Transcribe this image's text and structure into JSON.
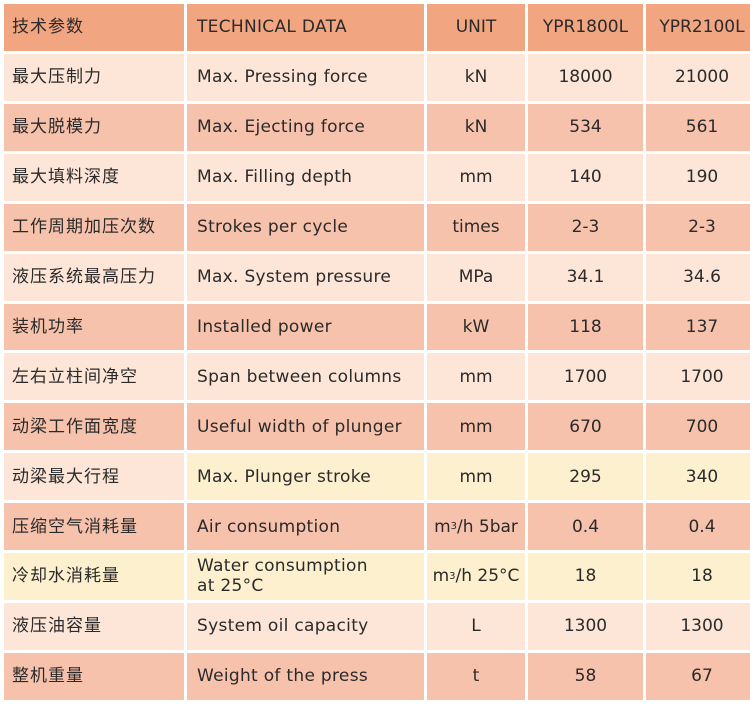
{
  "header": {
    "cn": "技术参数",
    "en": "TECHNICAL DATA",
    "unit": "UNIT",
    "model1": "YPR1800L",
    "model2": "YPR2100L"
  },
  "rows": [
    {
      "cn": "最大压制力",
      "en": "Max. Pressing force",
      "unit": "kN",
      "v1": "18000",
      "v2": "21000"
    },
    {
      "cn": "最大脱模力",
      "en": "Max. Ejecting force",
      "unit": "kN",
      "v1": "534",
      "v2": "561"
    },
    {
      "cn": "最大填料深度",
      "en": "Max. Filling depth",
      "unit": "mm",
      "v1": "140",
      "v2": "190"
    },
    {
      "cn": "工作周期加压次数",
      "en": "Strokes per cycle",
      "unit": "times",
      "v1": "2-3",
      "v2": "2-3"
    },
    {
      "cn": "液压系统最高压力",
      "en": "Max. System pressure",
      "unit": "MPa",
      "v1": "34.1",
      "v2": "34.6"
    },
    {
      "cn": "装机功率",
      "en": "Installed power",
      "unit": "kW",
      "v1": "118",
      "v2": "137"
    },
    {
      "cn": "左右立柱间净空",
      "en": "Span between columns",
      "unit": "mm",
      "v1": "1700",
      "v2": "1700"
    },
    {
      "cn": "动梁工作面宽度",
      "en": "Useful width of plunger",
      "unit": "mm",
      "v1": "670",
      "v2": "700"
    },
    {
      "cn": "动梁最大行程",
      "en": "Max. Plunger stroke",
      "unit": "mm",
      "v1": "295",
      "v2": "340"
    },
    {
      "cn": "压缩空气消耗量",
      "en": "Air consumption",
      "unit_base": "m",
      "unit_sup": "3",
      "unit_rest": "/h 5bar",
      "v1": "0.4",
      "v2": "0.4"
    },
    {
      "cn": "冷却水消耗量",
      "en_line1": "Water consumption",
      "en_line2": "at 25°C",
      "unit_base": "m",
      "unit_sup": "3",
      "unit_rest": "/h 25°C",
      "v1": "18",
      "v2": "18"
    },
    {
      "cn": "液压油容量",
      "en": "System oil capacity",
      "unit": "L",
      "v1": "1300",
      "v2": "1300"
    },
    {
      "cn": "整机重量",
      "en": "Weight of the press",
      "unit": "t",
      "v1": "58",
      "v2": "67"
    }
  ],
  "colors": {
    "header": "#f2a581",
    "row_light": "#fde6d8",
    "row_dark": "#f7c2ac",
    "row_yellow": "#fdf0cf"
  }
}
